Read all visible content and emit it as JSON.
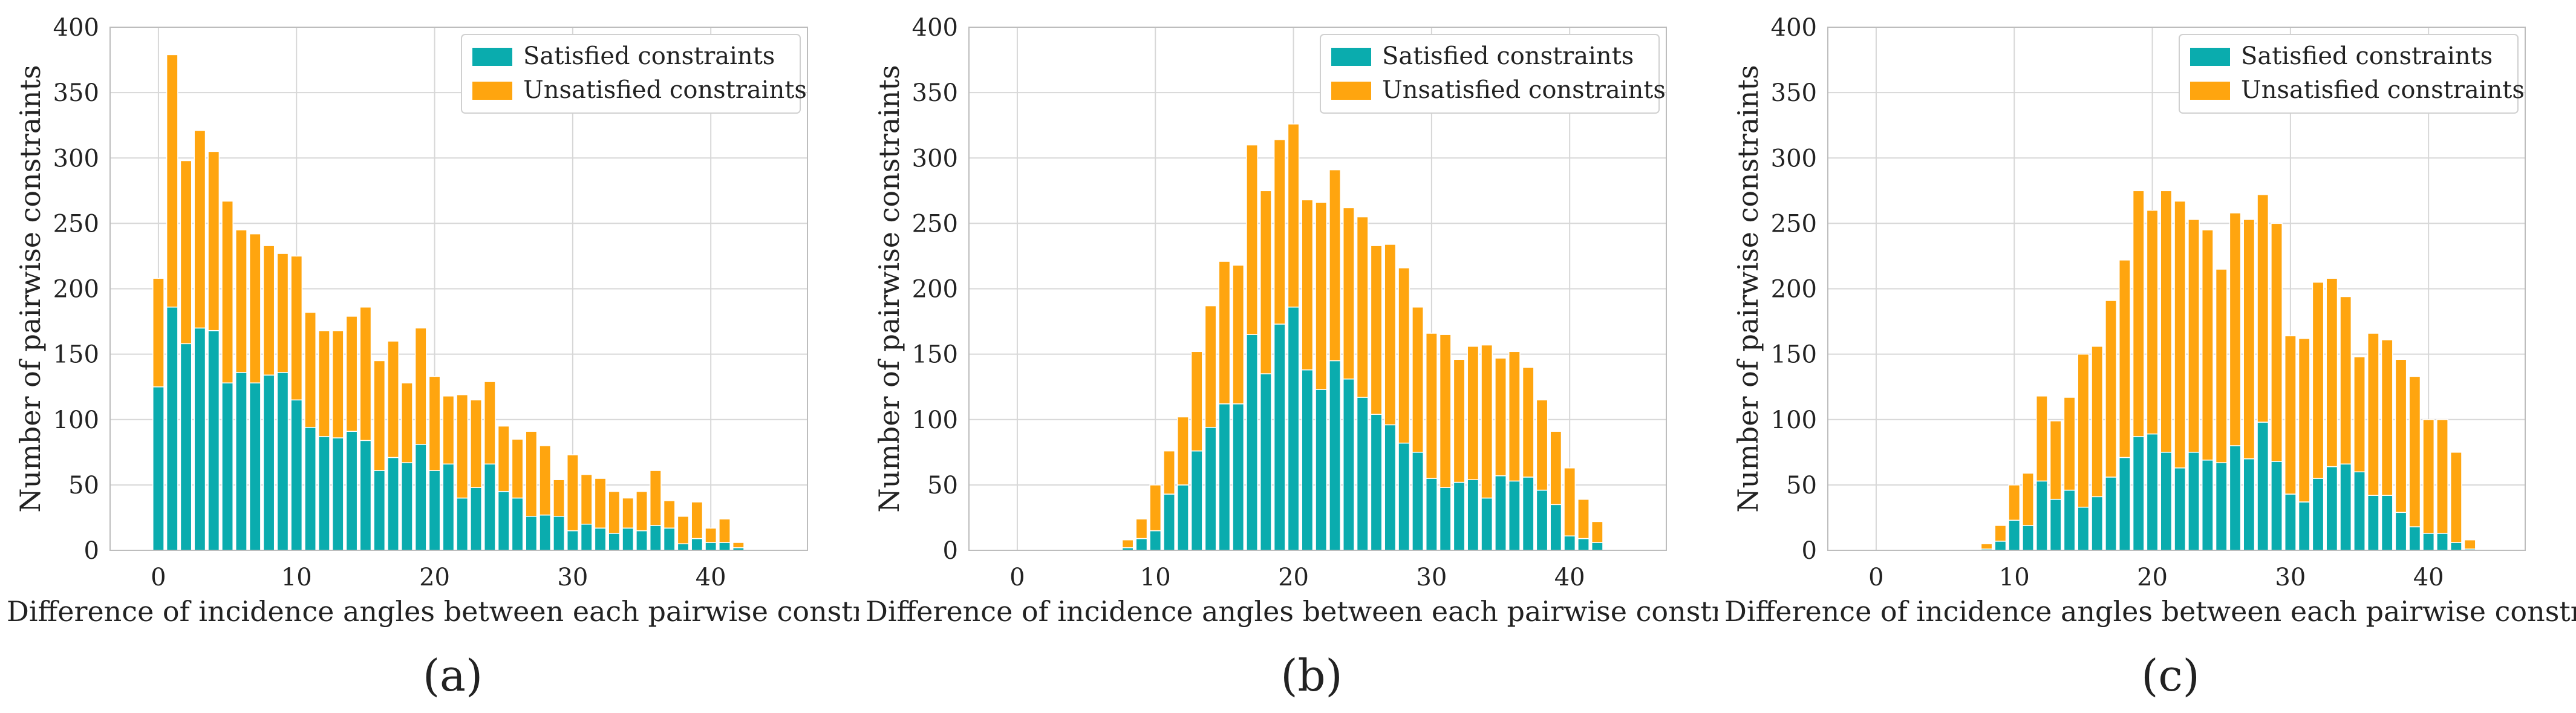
{
  "colors": {
    "satisfied": "#0aacae",
    "unsatisfied": "#ffa50f",
    "grid": "#d7d7d7",
    "frame": "#bdbdbd"
  },
  "chart_data": [
    {
      "type": "bar",
      "stacked": true,
      "caption": "(a)",
      "xlabel": "Difference of incidence angles between each pairwise constraint",
      "ylabel": "Number of pairwise constraints",
      "xlim": [
        -3.5,
        47
      ],
      "ylim": [
        0,
        400
      ],
      "xticks": [
        "0",
        "10",
        "20",
        "30",
        "40"
      ],
      "yticks": [
        "0",
        "50",
        "100",
        "150",
        "200",
        "250",
        "300",
        "350",
        "400"
      ],
      "legend": {
        "position": "top-right",
        "entries": [
          "Satisfied constraints",
          "Unsatisfied constraints"
        ]
      },
      "x": [
        0,
        1,
        2,
        3,
        4,
        5,
        6,
        7,
        8,
        9,
        10,
        11,
        12,
        13,
        14,
        15,
        16,
        17,
        18,
        19,
        20,
        21,
        22,
        23,
        24,
        25,
        26,
        27,
        28,
        29,
        30,
        31,
        32,
        33,
        34,
        35,
        36,
        37,
        38,
        39,
        40,
        41,
        42
      ],
      "series": [
        {
          "name": "Satisfied constraints",
          "values": [
            125,
            186,
            158,
            170,
            168,
            128,
            136,
            128,
            134,
            136,
            115,
            94,
            87,
            86,
            91,
            84,
            61,
            71,
            67,
            81,
            61,
            66,
            40,
            48,
            66,
            45,
            40,
            26,
            27,
            26,
            15,
            20,
            17,
            13,
            17,
            15,
            19,
            17,
            5,
            9,
            6,
            6,
            2
          ]
        },
        {
          "name": "Unsatisfied constraints",
          "values": [
            83,
            193,
            140,
            151,
            137,
            139,
            109,
            114,
            99,
            91,
            110,
            88,
            81,
            82,
            88,
            102,
            84,
            89,
            61,
            89,
            72,
            52,
            79,
            67,
            63,
            50,
            45,
            65,
            53,
            28,
            58,
            38,
            38,
            32,
            23,
            30,
            42,
            21,
            21,
            28,
            11,
            18,
            4
          ]
        }
      ]
    },
    {
      "type": "bar",
      "stacked": true,
      "caption": "(b)",
      "xlabel": "Difference of incidence angles between each pairwise constraint",
      "ylabel": "Number of pairwise constraints",
      "xlim": [
        -3.5,
        47
      ],
      "ylim": [
        0,
        400
      ],
      "xticks": [
        "0",
        "10",
        "20",
        "30",
        "40"
      ],
      "yticks": [
        "0",
        "50",
        "100",
        "150",
        "200",
        "250",
        "300",
        "350",
        "400"
      ],
      "legend": {
        "position": "top-right",
        "entries": [
          "Satisfied constraints",
          "Unsatisfied constraints"
        ]
      },
      "x": [
        8,
        9,
        10,
        11,
        12,
        13,
        14,
        15,
        16,
        17,
        18,
        19,
        20,
        21,
        22,
        23,
        24,
        25,
        26,
        27,
        28,
        29,
        30,
        31,
        32,
        33,
        34,
        35,
        36,
        37,
        38,
        39,
        40,
        41,
        42
      ],
      "series": [
        {
          "name": "Satisfied constraints",
          "values": [
            2,
            9,
            15,
            43,
            50,
            76,
            94,
            112,
            112,
            165,
            135,
            173,
            186,
            138,
            123,
            145,
            131,
            117,
            104,
            96,
            82,
            75,
            55,
            48,
            52,
            54,
            40,
            57,
            53,
            56,
            46,
            35,
            11,
            9,
            6
          ]
        },
        {
          "name": "Unsatisfied constraints",
          "values": [
            6,
            15,
            35,
            33,
            52,
            76,
            93,
            109,
            106,
            145,
            140,
            141,
            140,
            130,
            143,
            146,
            131,
            138,
            129,
            138,
            134,
            111,
            111,
            117,
            94,
            102,
            117,
            90,
            99,
            84,
            69,
            56,
            52,
            30,
            16
          ]
        }
      ]
    },
    {
      "type": "bar",
      "stacked": true,
      "caption": "(c)",
      "xlabel": "Difference of incidence angles between each pairwise constraint",
      "ylabel": "Number of pairwise constraints",
      "xlim": [
        -3.5,
        47
      ],
      "ylim": [
        0,
        400
      ],
      "xticks": [
        "0",
        "10",
        "20",
        "30",
        "40"
      ],
      "yticks": [
        "0",
        "50",
        "100",
        "150",
        "200",
        "250",
        "300",
        "350",
        "400"
      ],
      "legend": {
        "position": "top-right",
        "entries": [
          "Satisfied constraints",
          "Unsatisfied constraints"
        ]
      },
      "x": [
        8,
        9,
        10,
        11,
        12,
        13,
        14,
        15,
        16,
        17,
        18,
        19,
        20,
        21,
        22,
        23,
        24,
        25,
        26,
        27,
        28,
        29,
        30,
        31,
        32,
        33,
        34,
        35,
        36,
        37,
        38,
        39,
        40,
        41,
        42,
        43
      ],
      "series": [
        {
          "name": "Satisfied constraints",
          "values": [
            1,
            7,
            23,
            19,
            53,
            39,
            46,
            33,
            41,
            56,
            71,
            87,
            89,
            75,
            63,
            75,
            69,
            67,
            80,
            70,
            98,
            68,
            43,
            37,
            55,
            64,
            66,
            60,
            42,
            42,
            29,
            18,
            13,
            13,
            6,
            1
          ]
        },
        {
          "name": "Unsatisfied constraints",
          "values": [
            4,
            12,
            27,
            40,
            65,
            60,
            71,
            117,
            115,
            135,
            151,
            188,
            171,
            200,
            204,
            178,
            176,
            148,
            178,
            183,
            174,
            182,
            121,
            125,
            150,
            144,
            128,
            88,
            124,
            119,
            117,
            115,
            87,
            87,
            69,
            7
          ]
        }
      ]
    }
  ]
}
